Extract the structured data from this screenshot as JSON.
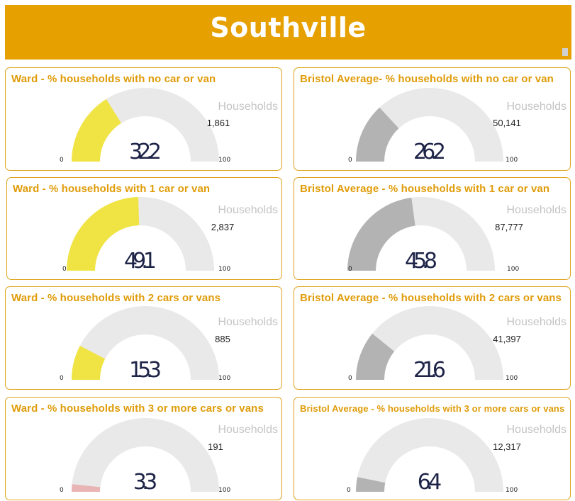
{
  "header": {
    "title": "Southville"
  },
  "cards": [
    {
      "title": "Ward - % households with no car or van",
      "households_label": "Households",
      "households": "1,861",
      "min_label": "0",
      "max_label": "100",
      "value_label": "32.2",
      "accent": "#f0e445"
    },
    {
      "title": "Bristol Average- % households with no car or van",
      "households_label": "Households",
      "households": "50,141",
      "min_label": "0",
      "max_label": "100",
      "value_label": "26.2",
      "accent": "#b3b3b3"
    },
    {
      "title": "Ward - % households with 1 car or van",
      "households_label": "Households",
      "households": "2,837",
      "min_label": "0",
      "max_label": "100",
      "value_label": "49.1",
      "accent": "#f0e445"
    },
    {
      "title": "Bristol Average - %  households with 1 car or van",
      "households_label": "Households",
      "households": "87,777",
      "min_label": "0",
      "max_label": "100",
      "value_label": "45.8",
      "accent": "#b3b3b3"
    },
    {
      "title": "Ward - % households with 2 cars or vans",
      "households_label": "Households",
      "households": "885",
      "min_label": "0",
      "max_label": "100",
      "value_label": "15.3",
      "accent": "#f0e445"
    },
    {
      "title": "Bristol Average - % households with 2 cars or vans",
      "households_label": "Households",
      "households": "41,397",
      "min_label": "0",
      "max_label": "100",
      "value_label": "21.6",
      "accent": "#b3b3b3"
    },
    {
      "title": "Ward - % households with 3 or more cars or vans",
      "households_label": "Households",
      "households": "191",
      "min_label": "0",
      "max_label": "100",
      "value_label": "3.3",
      "accent": "#e8b4b4"
    },
    {
      "title": "Bristol Average - % households with 3 or more cars or vans",
      "households_label": "Households",
      "households": "12,317",
      "min_label": "0",
      "max_label": "100",
      "value_label": "6.4",
      "accent": "#b3b3b3"
    }
  ],
  "chart_data": [
    {
      "type": "gauge",
      "title": "Ward - % households with no car or van",
      "value": 32.2,
      "min": 0,
      "max": 100
    },
    {
      "type": "gauge",
      "title": "Bristol Average- % households with no car or van",
      "value": 26.2,
      "min": 0,
      "max": 100
    },
    {
      "type": "gauge",
      "title": "Ward - % households with 1 car or van",
      "value": 49.1,
      "min": 0,
      "max": 100
    },
    {
      "type": "gauge",
      "title": "Bristol Average - %  households with 1 car or van",
      "value": 45.8,
      "min": 0,
      "max": 100
    },
    {
      "type": "gauge",
      "title": "Ward - % households with 2 cars or vans",
      "value": 15.3,
      "min": 0,
      "max": 100
    },
    {
      "type": "gauge",
      "title": "Bristol Average - % households with 2 cars or vans",
      "value": 21.6,
      "min": 0,
      "max": 100
    },
    {
      "type": "gauge",
      "title": "Ward - % households with 3 or more cars or vans",
      "value": 3.3,
      "min": 0,
      "max": 100
    },
    {
      "type": "gauge",
      "title": "Bristol Average - % households with 3 or more cars or vans",
      "value": 6.4,
      "min": 0,
      "max": 100
    }
  ],
  "colors": {
    "header_bg": "#e6a000",
    "gauge_track": "#e9e9e9",
    "title_text": "#e09c0a"
  }
}
